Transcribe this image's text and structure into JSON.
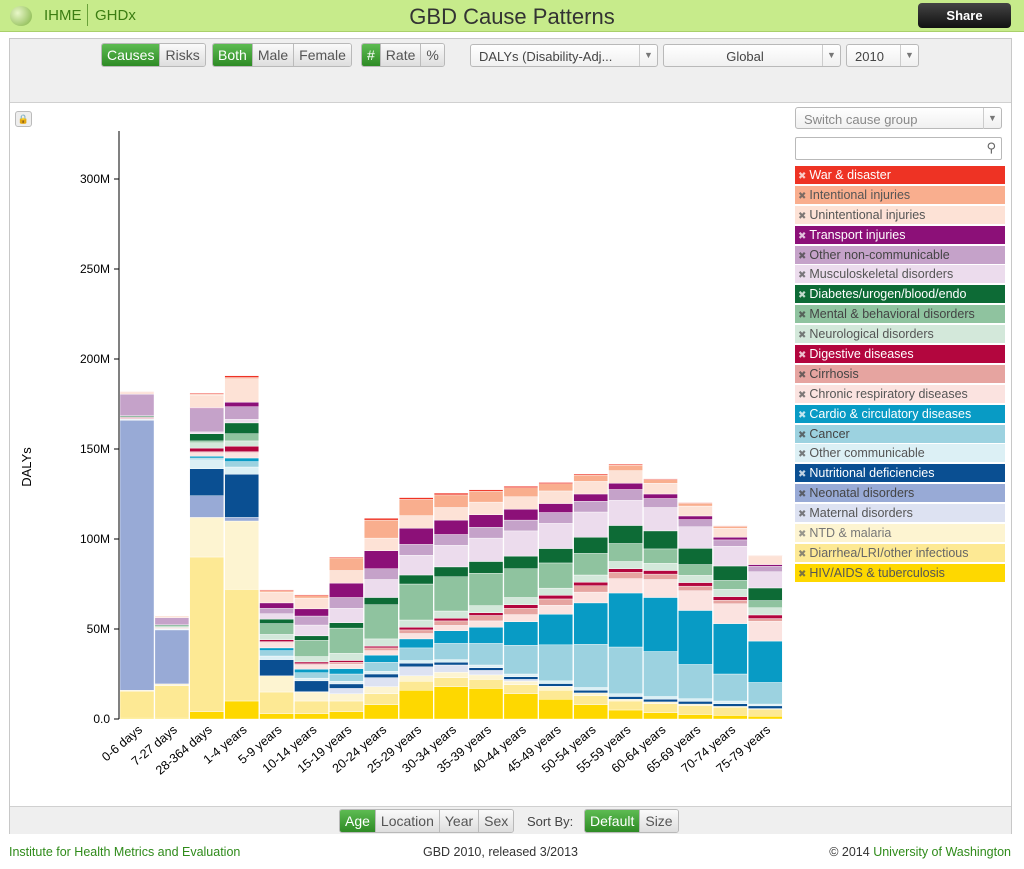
{
  "header": {
    "brand_left": "IHME",
    "brand_right": "GHDx",
    "title": "GBD Cause Patterns",
    "share_label": "Share"
  },
  "toolbar": {
    "view_mode": [
      "Causes",
      "Risks"
    ],
    "view_mode_selected": "Causes",
    "sex": [
      "Both",
      "Male",
      "Female"
    ],
    "sex_selected": "Both",
    "unit": [
      "#",
      "Rate",
      "%"
    ],
    "unit_selected": "#",
    "metric_value": "DALYs (Disability-Adj...",
    "location_value": "Global",
    "year_value": "2010"
  },
  "legend_panel": {
    "switch_group_placeholder": "Switch cause group",
    "search_value": "",
    "items": [
      {
        "label": "War & disaster",
        "color": "#ee3324",
        "text": "#ffffff"
      },
      {
        "label": "Intentional injuries",
        "color": "#f9ae8e",
        "text": "#555555"
      },
      {
        "label": "Unintentional injuries",
        "color": "#fde2d6",
        "text": "#555555"
      },
      {
        "label": "Transport injuries",
        "color": "#8c1078",
        "text": "#ffffff"
      },
      {
        "label": "Other non-communicable",
        "color": "#c5a2c9",
        "text": "#444444"
      },
      {
        "label": "Musculoskeletal disorders",
        "color": "#ecdced",
        "text": "#555555"
      },
      {
        "label": "Diabetes/urogen/blood/endo",
        "color": "#0d6b36",
        "text": "#ffffff"
      },
      {
        "label": "Mental & behavioral disorders",
        "color": "#8fc39f",
        "text": "#444444"
      },
      {
        "label": "Neurological disorders",
        "color": "#d3e8da",
        "text": "#555555"
      },
      {
        "label": "Digestive diseases",
        "color": "#b3063e",
        "text": "#ffffff"
      },
      {
        "label": "Cirrhosis",
        "color": "#e6a4a0",
        "text": "#444444"
      },
      {
        "label": "Chronic respiratory diseases",
        "color": "#fbe3e0",
        "text": "#555555"
      },
      {
        "label": "Cardio & circulatory diseases",
        "color": "#089bc5",
        "text": "#ffffff"
      },
      {
        "label": "Cancer",
        "color": "#9cd2e0",
        "text": "#444444"
      },
      {
        "label": "Other communicable",
        "color": "#dcf0f5",
        "text": "#555555"
      },
      {
        "label": "Nutritional deficiencies",
        "color": "#0a4f92",
        "text": "#ffffff"
      },
      {
        "label": "Neonatal disorders",
        "color": "#98aad6",
        "text": "#444444"
      },
      {
        "label": "Maternal disorders",
        "color": "#dde2f2",
        "text": "#555555"
      },
      {
        "label": "NTD & malaria",
        "color": "#fdf4d1",
        "text": "#777777"
      },
      {
        "label": "Diarrhea/LRI/other infectious",
        "color": "#fde994",
        "text": "#666666"
      },
      {
        "label": "HIV/AIDS & tuberculosis",
        "color": "#fed800",
        "text": "#555555"
      }
    ]
  },
  "bottom_bar": {
    "group_by": [
      "Age",
      "Location",
      "Year",
      "Sex"
    ],
    "group_by_selected": "Age",
    "sort_by_label": "Sort By:",
    "sort_by": [
      "Default",
      "Size"
    ],
    "sort_by_selected": "Default"
  },
  "footer": {
    "left": "Institute for Health Metrics and Evaluation",
    "middle": "GBD 2010, released 3/2013",
    "right_prefix": "© 2014",
    "right_link": "University of Washington"
  },
  "chart_data": {
    "type": "bar",
    "stacked": true,
    "ylabel": "DALYs",
    "ylim": [
      0,
      330
    ],
    "y_unit": "M",
    "yticks": [
      0,
      50,
      100,
      150,
      200,
      250,
      300
    ],
    "ytick_labels": [
      "0.0",
      "50M",
      "100M",
      "150M",
      "200M",
      "250M",
      "300M"
    ],
    "categories": [
      "0-6 days",
      "7-27 days",
      "28-364 days",
      "1-4 years",
      "5-9 years",
      "10-14 years",
      "15-19 years",
      "20-24 years",
      "25-29 years",
      "30-34 years",
      "35-39 years",
      "40-44 years",
      "45-49 years",
      "50-54 years",
      "55-59 years",
      "60-64 years",
      "65-69 years",
      "70-74 years",
      "75-79 years"
    ],
    "series": [
      {
        "name": "HIV/AIDS & tuberculosis",
        "color": "#fed800",
        "values": [
          0.5,
          0.5,
          4,
          10,
          3,
          3,
          4,
          8,
          16,
          18,
          17,
          14,
          11,
          8,
          5,
          3.5,
          2.5,
          2,
          1.5
        ]
      },
      {
        "name": "Diarrhea/LRI/other infectious",
        "color": "#fde994",
        "values": [
          15,
          18,
          86,
          62,
          12,
          7,
          6,
          6,
          5,
          5,
          5,
          5,
          5,
          5,
          5,
          5,
          5,
          4.5,
          4
        ]
      },
      {
        "name": "NTD & malaria",
        "color": "#fdf4d1",
        "values": [
          0.5,
          1,
          22,
          38,
          9,
          5,
          4,
          4,
          3,
          3,
          2.5,
          2,
          2,
          1.5,
          1,
          1,
          0.8,
          0.5,
          0.3
        ]
      },
      {
        "name": "Maternal disorders",
        "color": "#dde2f2",
        "values": [
          0,
          0,
          0,
          0,
          0,
          0.2,
          3,
          5,
          5,
          4,
          2.5,
          1,
          0.2,
          0,
          0,
          0,
          0,
          0,
          0
        ]
      },
      {
        "name": "Neonatal disorders",
        "color": "#98aad6",
        "values": [
          150,
          30,
          12,
          2,
          0,
          0,
          0,
          0,
          0,
          0,
          0,
          0,
          0,
          0,
          0,
          0,
          0,
          0,
          0
        ]
      },
      {
        "name": "Nutritional deficiencies",
        "color": "#0a4f92",
        "values": [
          0,
          0,
          15,
          24,
          9,
          6,
          2.5,
          2,
          2,
          1.5,
          1.5,
          1.5,
          1.5,
          1.5,
          1.5,
          1.5,
          1.5,
          1.5,
          1.5
        ]
      },
      {
        "name": "Other communicable",
        "color": "#dcf0f5",
        "values": [
          0.5,
          0.5,
          5,
          4,
          2,
          1.5,
          1.5,
          1.5,
          1.5,
          1.5,
          1.5,
          1.5,
          1.5,
          1.5,
          1.5,
          1.5,
          1.5,
          1.5,
          1
        ]
      },
      {
        "name": "Cancer",
        "color": "#9cd2e0",
        "values": [
          0,
          0,
          1,
          3,
          3,
          3,
          4,
          5,
          7,
          9,
          12,
          16,
          20,
          24,
          26,
          25,
          19,
          15,
          12
        ]
      },
      {
        "name": "Cardio & circulatory diseases",
        "color": "#089bc5",
        "values": [
          0,
          0,
          1,
          2,
          1.5,
          2,
          3,
          4,
          5,
          7,
          9,
          13,
          17,
          23,
          30,
          30,
          30,
          28,
          23
        ]
      },
      {
        "name": "Chronic respiratory diseases",
        "color": "#fbe3e0",
        "values": [
          0.5,
          0.5,
          2,
          3,
          3,
          2.5,
          2.5,
          2.5,
          3,
          3,
          3.5,
          4,
          5,
          6,
          8,
          10,
          11,
          11,
          11
        ]
      },
      {
        "name": "Cirrhosis",
        "color": "#e6a4a0",
        "values": [
          0,
          0,
          0.5,
          0.5,
          0.5,
          0.5,
          1,
          1.5,
          2,
          2.5,
          3,
          3.5,
          3.5,
          3.5,
          3.5,
          3,
          2.5,
          2,
          1.5
        ]
      },
      {
        "name": "Digestive diseases",
        "color": "#b3063e",
        "values": [
          0.5,
          0.3,
          2,
          3,
          1,
          1,
          1,
          1,
          1.5,
          1.5,
          1.5,
          2,
          2,
          2,
          2,
          2,
          2,
          2,
          2
        ]
      },
      {
        "name": "Neurological disorders",
        "color": "#d3e8da",
        "values": [
          0.5,
          0.5,
          3,
          3,
          3,
          3,
          4,
          4,
          4,
          4,
          4,
          4,
          4,
          4,
          4,
          4,
          4,
          4,
          4
        ]
      },
      {
        "name": "Mental & behavioral disorders",
        "color": "#8fc39f",
        "values": [
          0,
          0.5,
          1,
          4,
          6,
          9,
          14,
          19,
          20,
          19,
          18,
          16,
          14,
          12,
          10,
          8,
          6,
          5,
          4
        ]
      },
      {
        "name": "Diabetes/urogen/blood/endo",
        "color": "#0d6b36",
        "values": [
          0.5,
          0.5,
          4,
          6,
          2.5,
          2.5,
          3,
          4,
          5,
          5.5,
          6.5,
          7,
          8,
          9,
          10,
          10,
          9,
          8,
          7
        ]
      },
      {
        "name": "Musculoskeletal disorders",
        "color": "#ecdced",
        "values": [
          0,
          0,
          1,
          2,
          3,
          6,
          8,
          10,
          11,
          12,
          13,
          14,
          14,
          14,
          14,
          13,
          12,
          11,
          9
        ]
      },
      {
        "name": "Other non-communicable",
        "color": "#c5a2c9",
        "values": [
          12,
          4,
          13,
          7,
          3,
          5,
          6,
          6,
          6,
          6,
          6,
          6,
          6,
          6,
          6,
          5,
          4,
          3.5,
          3
        ]
      },
      {
        "name": "Transport injuries",
        "color": "#8c1078",
        "values": [
          0,
          0,
          0.5,
          2.5,
          3,
          4,
          8,
          10,
          9,
          8,
          7,
          6,
          5,
          4,
          3.5,
          2.5,
          2,
          1.5,
          1
        ]
      },
      {
        "name": "Unintentional injuries",
        "color": "#fde2d6",
        "values": [
          1,
          1,
          7,
          13,
          6,
          6,
          7,
          7,
          7,
          7,
          7,
          7,
          7,
          7,
          7,
          6,
          5.5,
          5,
          4.5
        ]
      },
      {
        "name": "Intentional injuries",
        "color": "#f9ae8e",
        "values": [
          0,
          0,
          0.5,
          0.7,
          0.7,
          1.3,
          7,
          10,
          9,
          7,
          6,
          5,
          4,
          3.5,
          3,
          2,
          1.5,
          1,
          0.5
        ]
      },
      {
        "name": "War & disaster",
        "color": "#ee3324",
        "values": [
          0.3,
          0.2,
          0.5,
          1,
          0.5,
          0.5,
          0.5,
          1,
          1,
          1,
          0.8,
          0.8,
          0.7,
          0.6,
          0.5,
          0.4,
          0.4,
          0.3,
          0.2
        ]
      }
    ]
  }
}
